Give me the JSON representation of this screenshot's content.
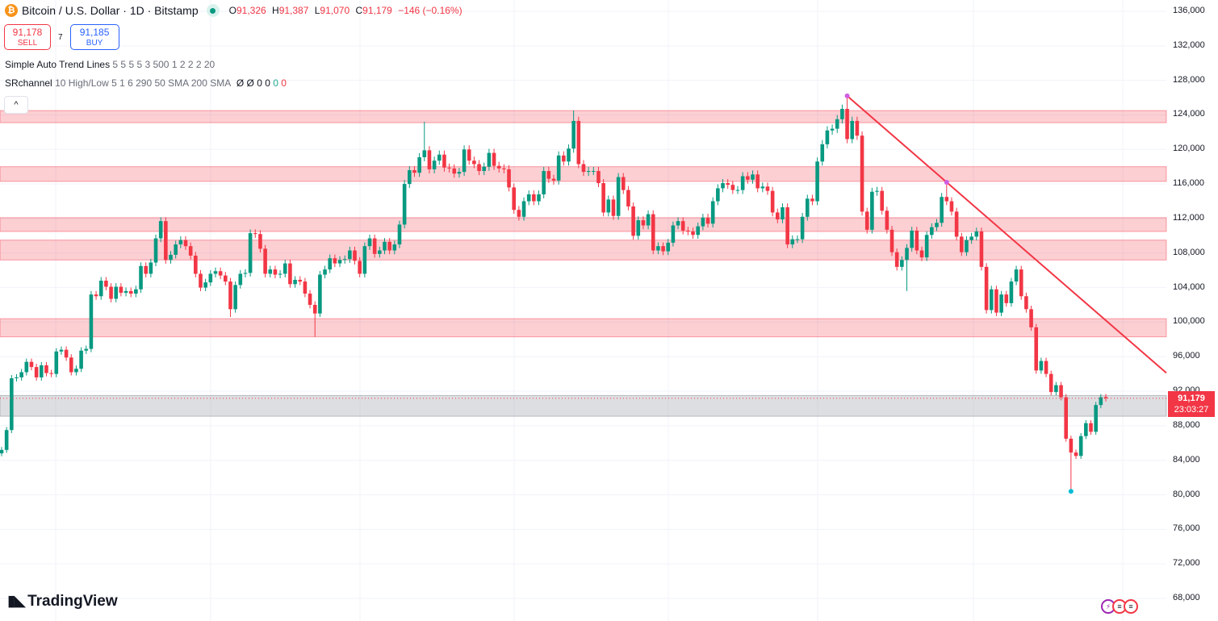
{
  "header": {
    "symbol_title": "Bitcoin / U.S. Dollar · 1D · Bitstamp",
    "ohlc": {
      "o_label": "O",
      "o": "91,326",
      "h_label": "H",
      "h": "91,387",
      "l_label": "L",
      "l": "91,070",
      "c_label": "C",
      "c": "91,179",
      "change": "−146 (−0.16%)"
    }
  },
  "trade": {
    "sell_price": "91,178",
    "sell_label": "SELL",
    "spread": "7",
    "buy_price": "91,185",
    "buy_label": "BUY"
  },
  "indicators": [
    {
      "name": "Simple Auto Trend Lines",
      "params": "5 5 5 5 3 500 1 2 2 2 20"
    },
    {
      "name": "SRchannel",
      "params": "10 High/Low 5 1 6 290 50 SMA 200 SMA",
      "values": "Ø Ø 0 0",
      "green_value": "0",
      "red_value": "0"
    }
  ],
  "collapse_icon": "chevron-up-icon",
  "price_tag": {
    "price": "91,179",
    "countdown": "23:03:27"
  },
  "brand": "TradingView",
  "colors": {
    "up": "#089981",
    "down": "#f23645",
    "zone": "#f23645",
    "gray_zone": "#9598a1",
    "trendline": "#f23645"
  },
  "chart_data": {
    "type": "candlestick",
    "interval": "1D",
    "y_ticks": [
      136000,
      132000,
      128000,
      124000,
      120000,
      116000,
      112000,
      108000,
      104000,
      100000,
      96000,
      92000,
      88000,
      84000,
      80000,
      76000,
      72000,
      68000
    ],
    "y_tick_labels": [
      "136,000",
      "132,000",
      "128,000",
      "124,000",
      "120,000",
      "116,000",
      "112,000",
      "108,000",
      "104,000",
      "100,000",
      "96,000",
      "92,000",
      "88,000",
      "84,000",
      "80,000",
      "76,000",
      "72,000",
      "68,000"
    ],
    "ylim": [
      68000,
      136000
    ],
    "first_open": 84800,
    "last_open": 91326,
    "closes": [
      85200,
      87500,
      93500,
      93600,
      94200,
      95400,
      94800,
      93600,
      95000,
      94100,
      94000,
      96600,
      96800,
      95900,
      94200,
      94600,
      96700,
      96900,
      103200,
      103000,
      104800,
      104100,
      102700,
      104100,
      103400,
      103600,
      103300,
      103800,
      106500,
      105600,
      106900,
      109700,
      111700,
      107200,
      107800,
      109000,
      109500,
      108800,
      107700,
      105600,
      104000,
      104600,
      105600,
      105900,
      105400,
      104700,
      101500,
      104300,
      105600,
      105700,
      110300,
      110200,
      108500,
      105600,
      106100,
      105500,
      105600,
      106800,
      104400,
      104900,
      104700,
      103300,
      102000,
      101000,
      105500,
      106100,
      107400,
      106800,
      107200,
      107300,
      108300,
      107100,
      105600,
      108800,
      109700,
      107900,
      108300,
      109300,
      108300,
      109000,
      111300,
      116000,
      117600,
      117300,
      119100,
      119900,
      117700,
      118700,
      119400,
      117900,
      117800,
      117200,
      117400,
      120000,
      118700,
      118300,
      117500,
      118000,
      119600,
      118100,
      117800,
      117700,
      115600,
      113000,
      112200,
      114000,
      114800,
      114000,
      114800,
      117500,
      116600,
      116400,
      119300,
      118600,
      120100,
      123300,
      118300,
      117400,
      117500,
      117500,
      116100,
      112700,
      114200,
      112300,
      116800,
      115300,
      113400,
      110000,
      111800,
      111200,
      112500,
      108300,
      108800,
      108200,
      109200,
      111200,
      111700,
      110600,
      110500,
      110100,
      111100,
      112100,
      111400,
      114000,
      115500,
      116100,
      115900,
      115300,
      115300,
      116900,
      116500,
      117100,
      115500,
      115700,
      115200,
      112700,
      111900,
      113300,
      109000,
      109600,
      109600,
      112200,
      114300,
      114000,
      118600,
      120600,
      122200,
      122400,
      123500,
      124700,
      121200,
      123300,
      121600,
      112800,
      110700,
      115100,
      115200,
      112900,
      110700,
      108100,
      106400,
      107200,
      108600,
      110600,
      108300,
      107500,
      110100,
      111000,
      111500,
      114500,
      114000,
      112800,
      109900,
      108100,
      109500,
      109900,
      110500,
      106400,
      101400,
      103800,
      101100,
      103200,
      102200,
      104700,
      106100,
      103000,
      101500,
      99400,
      94400,
      95500,
      94000,
      91900,
      92700,
      91300,
      86500,
      84900,
      84500,
      86800,
      88300,
      87300,
      90400,
      91300,
      91179
    ],
    "wick_extremes": [
      {
        "index": 85,
        "high": 123200
      },
      {
        "index": 115,
        "high": 124500
      },
      {
        "index": 170,
        "high": 126200
      },
      {
        "index": 190,
        "high": 116200
      },
      {
        "index": 215,
        "low": 80400
      },
      {
        "index": 46,
        "low": 100600
      },
      {
        "index": 63,
        "low": 98300
      },
      {
        "index": 182,
        "low": 103600
      }
    ],
    "pivots": [
      {
        "index": 170,
        "price": 126200,
        "kind": "high"
      },
      {
        "index": 190,
        "price": 116200,
        "kind": "high"
      },
      {
        "index": 215,
        "price": 80400,
        "kind": "low"
      }
    ],
    "trendline": {
      "from": {
        "index": 170,
        "price": 126200
      },
      "through": {
        "index": 190,
        "price": 116200
      }
    },
    "sr_zones": [
      [
        123100,
        124500
      ],
      [
        116300,
        118000
      ],
      [
        110500,
        112100
      ],
      [
        107200,
        109500
      ],
      [
        98300,
        100400
      ]
    ],
    "gray_zone": [
      89100,
      91500
    ],
    "current_price": 91179
  }
}
